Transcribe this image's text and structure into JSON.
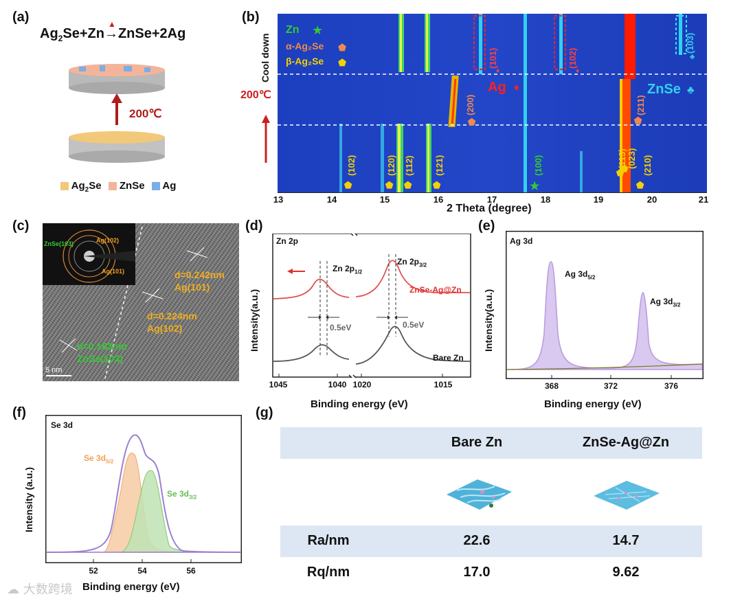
{
  "panel_labels": {
    "a": "(a)",
    "b": "(b)",
    "c": "(c)",
    "d": "(d)",
    "e": "(e)",
    "f": "(f)",
    "g": "(g)"
  },
  "panel_a": {
    "reaction": {
      "reactant1": "Ag",
      "reactant1_sub": "2",
      "reactant1_tail": "Se+Zn",
      "arrow": "→",
      "products": "ZnSe+2Ag"
    },
    "temperature": "200℃",
    "legend": [
      {
        "label": "Ag",
        "sub": "2",
        "tail": "Se",
        "color": "#f2c879"
      },
      {
        "label": "ZnSe",
        "sub": "",
        "tail": "",
        "color": "#f4b49a"
      },
      {
        "label": "Ag",
        "sub": "",
        "tail": "",
        "color": "#79aee6"
      }
    ]
  },
  "panel_b": {
    "xlabel": "2 Theta (degree)",
    "xticks": [
      "13",
      "14",
      "15",
      "16",
      "17",
      "18",
      "19",
      "20",
      "21"
    ],
    "ylabel_top": "Cool down",
    "ylabel_mid": "200℃",
    "legend": [
      {
        "label": "Zn",
        "symbol": "★",
        "color": "#33cc33"
      },
      {
        "label": "α-Ag₂Se",
        "symbol": "⬟",
        "color": "#f08a4b"
      },
      {
        "label": "β-Ag₂Se",
        "symbol": "⬟",
        "color": "#f5d000"
      }
    ],
    "ag_label": "Ag",
    "znse_label": "ZnSe",
    "peaks": [
      "(101)",
      "(102)",
      "(103)",
      "(200)",
      "(211)",
      "(102)",
      "(120)",
      "(112)",
      "(121)",
      "(100)",
      "(113)",
      "(023)",
      "(210)"
    ]
  },
  "panel_c": {
    "saed": {
      "znse": "ZnSe(103)",
      "ag102": "Ag(102)",
      "ag101": "Ag(101)"
    },
    "d1": "d=0.242nm",
    "d1_plane": "Ag(101)",
    "d2": "d=0.224nm",
    "d2_plane": "Ag(102)",
    "d3": "d=0.183nm",
    "d3_plane": "ZnSe(103)",
    "scale": "5 nm"
  },
  "panel_d": {
    "title": "Zn 2p",
    "ylabel": "Intensity(a.u.)",
    "xlabel": "Binding energy (eV)",
    "xticks": [
      "1045",
      "1040",
      "1020",
      "1015"
    ],
    "peak1": "Zn 2p",
    "peak1_sub": "1/2",
    "peak2": "Zn 2p",
    "peak2_sub": "3/2",
    "shift1": "0.5eV",
    "shift2": "0.5eV",
    "series1": "ZnSe-Ag@Zn",
    "series2": "Bare Zn"
  },
  "panel_e": {
    "title": "Ag 3d",
    "ylabel": "Intensity(a.u.)",
    "xlabel": "Binding energy (eV)",
    "xticks": [
      "368",
      "372",
      "376"
    ],
    "peak1": "Ag 3d",
    "peak1_sub": "5/2",
    "peak2": "Ag 3d",
    "peak2_sub": "3/2"
  },
  "panel_f": {
    "title": "Se 3d",
    "ylabel": "Intensity (a.u.)",
    "xlabel": "Binding energy (eV)",
    "xticks": [
      "52",
      "54",
      "56"
    ],
    "peak1": "Se 3d",
    "peak1_sub": "5/2",
    "peak2": "Se 3d",
    "peak2_sub": "3/2"
  },
  "panel_g": {
    "headers": [
      "Bare Zn",
      "ZnSe-Ag@Zn"
    ],
    "rows": [
      {
        "label": "Ra/nm",
        "values": [
          "22.6",
          "14.7"
        ]
      },
      {
        "label": "Rq/nm",
        "values": [
          "17.0",
          "9.62"
        ]
      }
    ]
  },
  "watermark": "大数跨境",
  "colors": {
    "red": "#cc1f1f",
    "orange": "#f08a4b",
    "yellow": "#f5d000",
    "green": "#33cc33",
    "cyan": "#33d0ee",
    "band": "#dde7f3"
  }
}
